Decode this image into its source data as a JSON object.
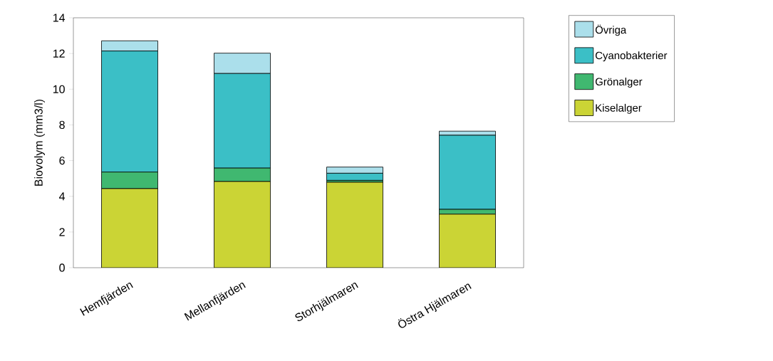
{
  "chart_data": {
    "type": "bar",
    "stacked": true,
    "ylabel": "Biovolym (mm3/l)",
    "categories": [
      "Hemfjärden",
      "Mellanfjärden",
      "Storhjälmaren",
      "Östra Hjälmaren"
    ],
    "series": [
      {
        "name": "Kiselalger",
        "color": "#cbd435",
        "values": [
          4.43,
          4.83,
          4.79,
          3.0
        ]
      },
      {
        "name": "Grönalger",
        "color": "#40b870",
        "values": [
          0.93,
          0.75,
          0.1,
          0.27
        ]
      },
      {
        "name": "Cyanobakterier",
        "color": "#3bbfc6",
        "values": [
          6.78,
          5.3,
          0.4,
          4.15
        ]
      },
      {
        "name": "Övriga",
        "color": "#abdfeb",
        "values": [
          0.57,
          1.14,
          0.35,
          0.23
        ]
      }
    ],
    "ylim": [
      0,
      14
    ],
    "yticks": [
      0,
      2,
      4,
      6,
      8,
      10,
      12,
      14
    ],
    "legend": "right"
  }
}
